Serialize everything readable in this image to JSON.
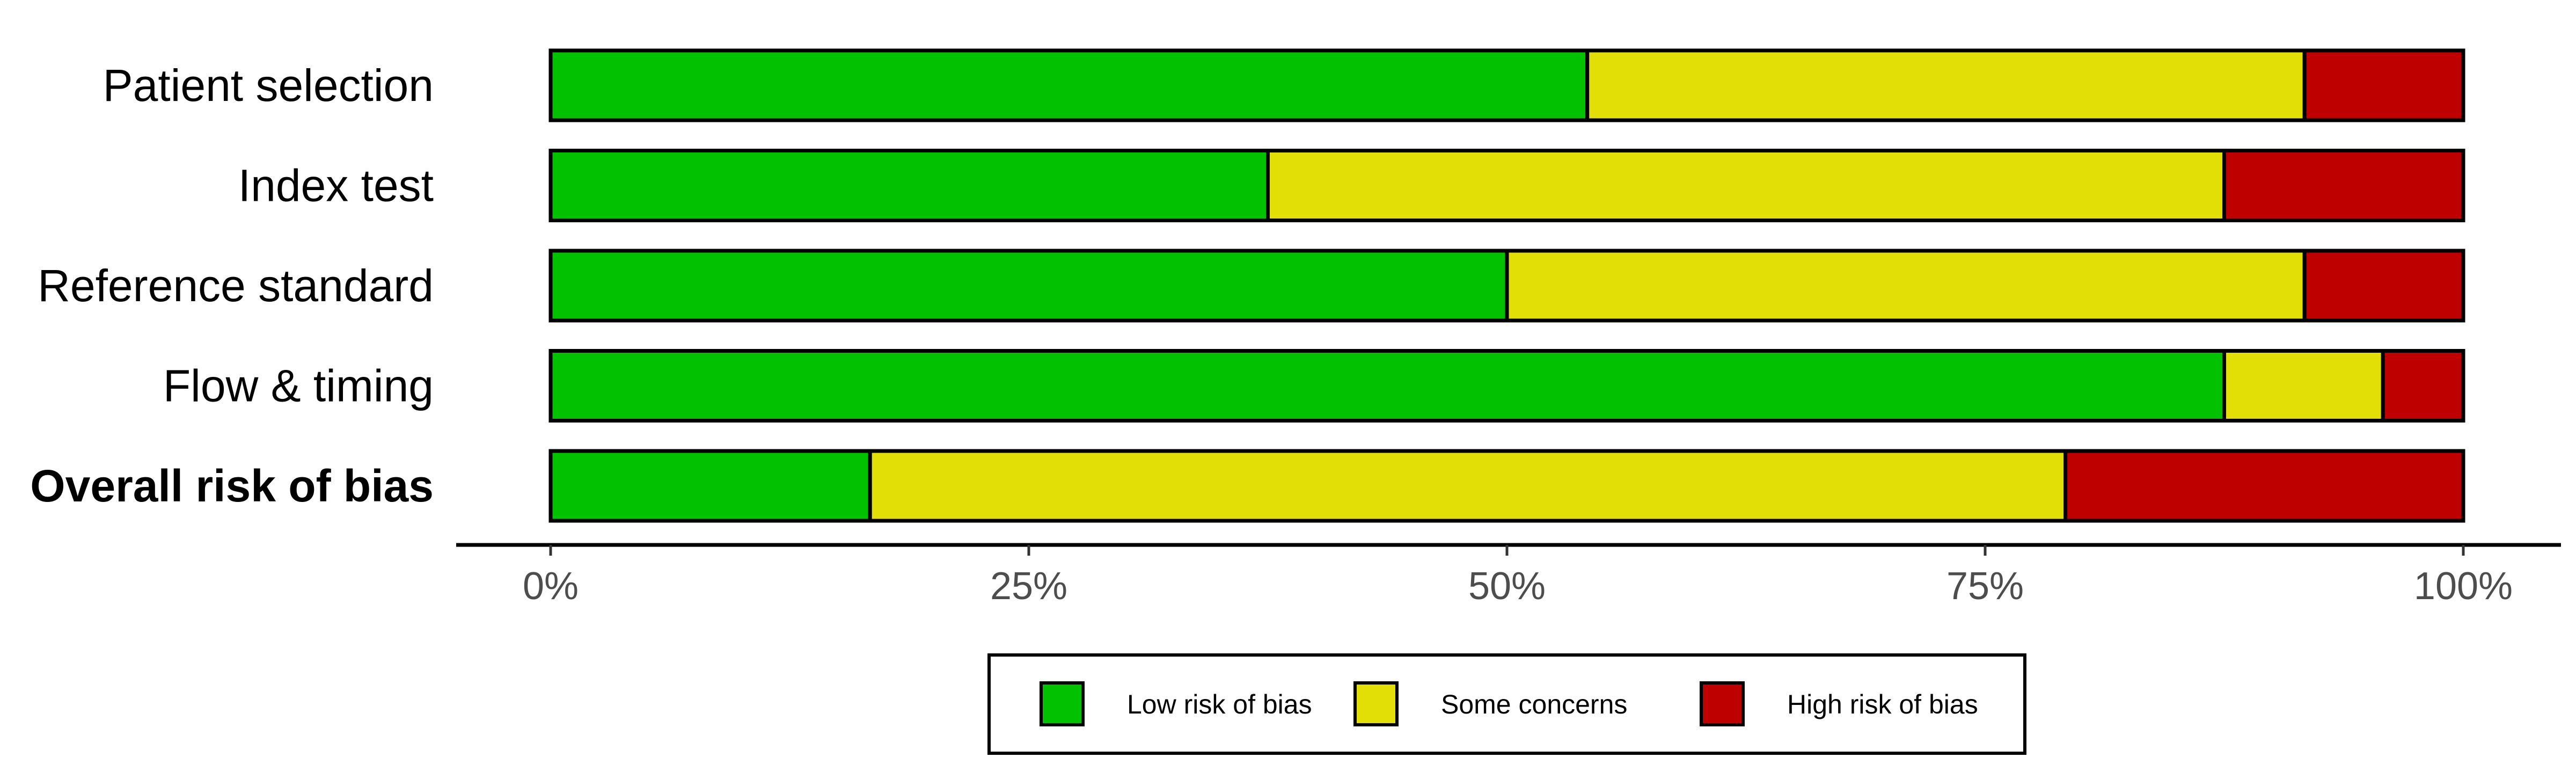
{
  "chart_data": {
    "type": "bar",
    "orientation": "horizontal",
    "stacked": true,
    "categories": [
      "Patient selection",
      "Index test",
      "Reference standard",
      "Flow & timing",
      "Overall risk of bias"
    ],
    "bold_categories": [
      "Overall risk of bias"
    ],
    "series": [
      {
        "name": "Low risk of bias",
        "color": "#02c100",
        "values": [
          54.2,
          37.5,
          50.0,
          87.5,
          16.7
        ]
      },
      {
        "name": "Some concerns",
        "color": "#e2df07",
        "values": [
          37.5,
          50.0,
          41.7,
          8.3,
          62.5
        ]
      },
      {
        "name": "High risk of bias",
        "color": "#bf0000",
        "values": [
          8.3,
          12.5,
          8.3,
          4.2,
          20.8
        ]
      }
    ],
    "xlim": [
      0,
      100
    ],
    "x_ticks": [
      0,
      25,
      50,
      75,
      100
    ],
    "x_tick_labels": [
      "0%",
      "25%",
      "50%",
      "75%",
      "100%"
    ],
    "grid": false,
    "legend_position": "bottom"
  }
}
